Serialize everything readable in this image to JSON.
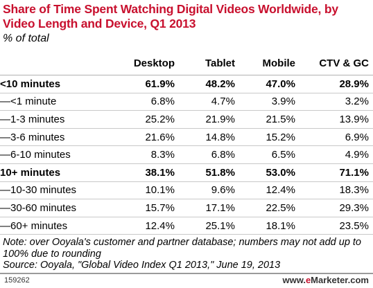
{
  "chart_data": {
    "type": "table",
    "title": "Share of Time Spent Watching Digital Videos Worldwide, by Video Length and Device, Q1 2013",
    "subtitle": "% of total",
    "columns": [
      "Desktop",
      "Tablet",
      "Mobile",
      "CTV & GC"
    ],
    "rows": [
      {
        "label": "<10 minutes",
        "bold": true,
        "values": [
          "61.9%",
          "48.2%",
          "47.0%",
          "28.9%"
        ]
      },
      {
        "label": "—<1 minute",
        "bold": false,
        "values": [
          "6.8%",
          "4.7%",
          "3.9%",
          "3.2%"
        ]
      },
      {
        "label": "—1-3 minutes",
        "bold": false,
        "values": [
          "25.2%",
          "21.9%",
          "21.5%",
          "13.9%"
        ]
      },
      {
        "label": "—3-6 minutes",
        "bold": false,
        "values": [
          "21.6%",
          "14.8%",
          "15.2%",
          "6.9%"
        ]
      },
      {
        "label": "—6-10 minutes",
        "bold": false,
        "values": [
          "8.3%",
          "6.8%",
          "6.5%",
          "4.9%"
        ]
      },
      {
        "label": "10+ minutes",
        "bold": true,
        "values": [
          "38.1%",
          "51.8%",
          "53.0%",
          "71.1%"
        ]
      },
      {
        "label": "—10-30 minutes",
        "bold": false,
        "values": [
          "10.1%",
          "9.6%",
          "12.4%",
          "18.3%"
        ]
      },
      {
        "label": "—30-60 minutes",
        "bold": false,
        "values": [
          "15.7%",
          "17.1%",
          "22.5%",
          "29.3%"
        ]
      },
      {
        "label": "—60+ minutes",
        "bold": false,
        "values": [
          "12.4%",
          "25.1%",
          "18.1%",
          "23.5%"
        ]
      }
    ]
  },
  "note": "Note: over Ooyala's customer and partner database; numbers may not add up to 100% due to rounding",
  "source": "Source: Ooyala, \"Global Video Index Q1 2013,\" June 19, 2013",
  "chart_id": "159262",
  "brand": {
    "prefix": "www.",
    "accent": "e",
    "suffix": "Marketer.com"
  }
}
